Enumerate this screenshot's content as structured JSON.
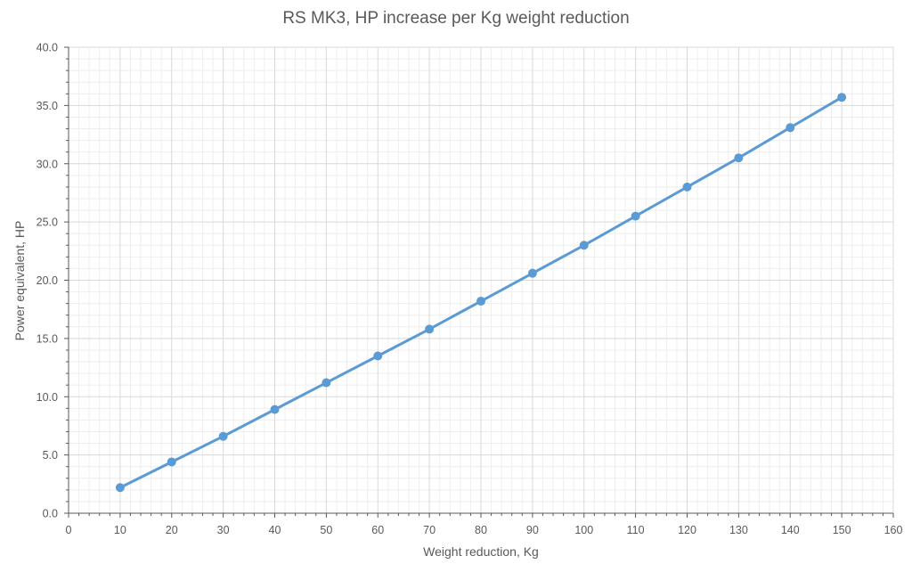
{
  "chart_data": {
    "type": "line",
    "title": "RS MK3, HP increase per Kg weight reduction",
    "xlabel": "Weight reduction, Kg",
    "ylabel": "Power equivalent, HP",
    "xlim": [
      0,
      160
    ],
    "ylim": [
      0,
      40
    ],
    "x_ticks": [
      "0",
      "10",
      "20",
      "30",
      "40",
      "50",
      "60",
      "70",
      "80",
      "90",
      "100",
      "110",
      "120",
      "130",
      "140",
      "150",
      "160"
    ],
    "y_ticks": [
      "0.0",
      "5.0",
      "10.0",
      "15.0",
      "20.0",
      "25.0",
      "30.0",
      "35.0",
      "40.0"
    ],
    "grid": true,
    "legend": "none",
    "series": [
      {
        "color": "#5B9BD5",
        "x": [
          10,
          20,
          30,
          40,
          50,
          60,
          70,
          80,
          90,
          100,
          110,
          120,
          130,
          140,
          150
        ],
        "y": [
          2.2,
          4.4,
          6.6,
          8.9,
          11.2,
          13.5,
          15.8,
          18.2,
          20.6,
          23.0,
          25.5,
          28.0,
          30.5,
          33.1,
          35.7
        ]
      }
    ],
    "colors": {
      "gridline_major": "#d9d9d9",
      "gridline_minor": "#eeeeee",
      "axis": "#595959",
      "text": "#595959"
    }
  }
}
